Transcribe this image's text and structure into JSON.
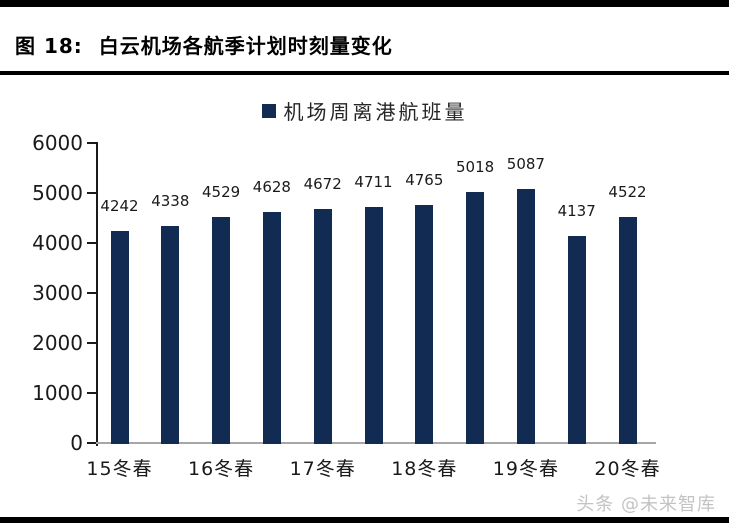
{
  "page": {
    "title": "图 18:  白云机场各航季计划时刻量变化",
    "watermark": "头条 @未来智库"
  },
  "chart_data": {
    "type": "bar",
    "title": "",
    "legend_position": "top-center",
    "series": [
      {
        "name": "机场周离港航班量",
        "values": [
          4242,
          4338,
          4529,
          4628,
          4672,
          4711,
          4765,
          5018,
          5087,
          4137,
          4522
        ]
      }
    ],
    "x_tick_labels": [
      "15冬春",
      "16冬春",
      "17冬春",
      "18冬春",
      "19冬春",
      "20冬春"
    ],
    "x_tick_bar_indexes": [
      0,
      2,
      4,
      6,
      8,
      10
    ],
    "ylim": [
      0,
      6000
    ],
    "y_ticks": [
      0,
      1000,
      2000,
      3000,
      4000,
      5000,
      6000
    ],
    "grid": false,
    "show_data_labels": true,
    "colors": {
      "bar": "#122b52",
      "axis": "#1a1a1a",
      "x_axis_line": "#a6a6a6",
      "text": "#1a1a1a",
      "watermark": "#c3c3c3"
    }
  }
}
